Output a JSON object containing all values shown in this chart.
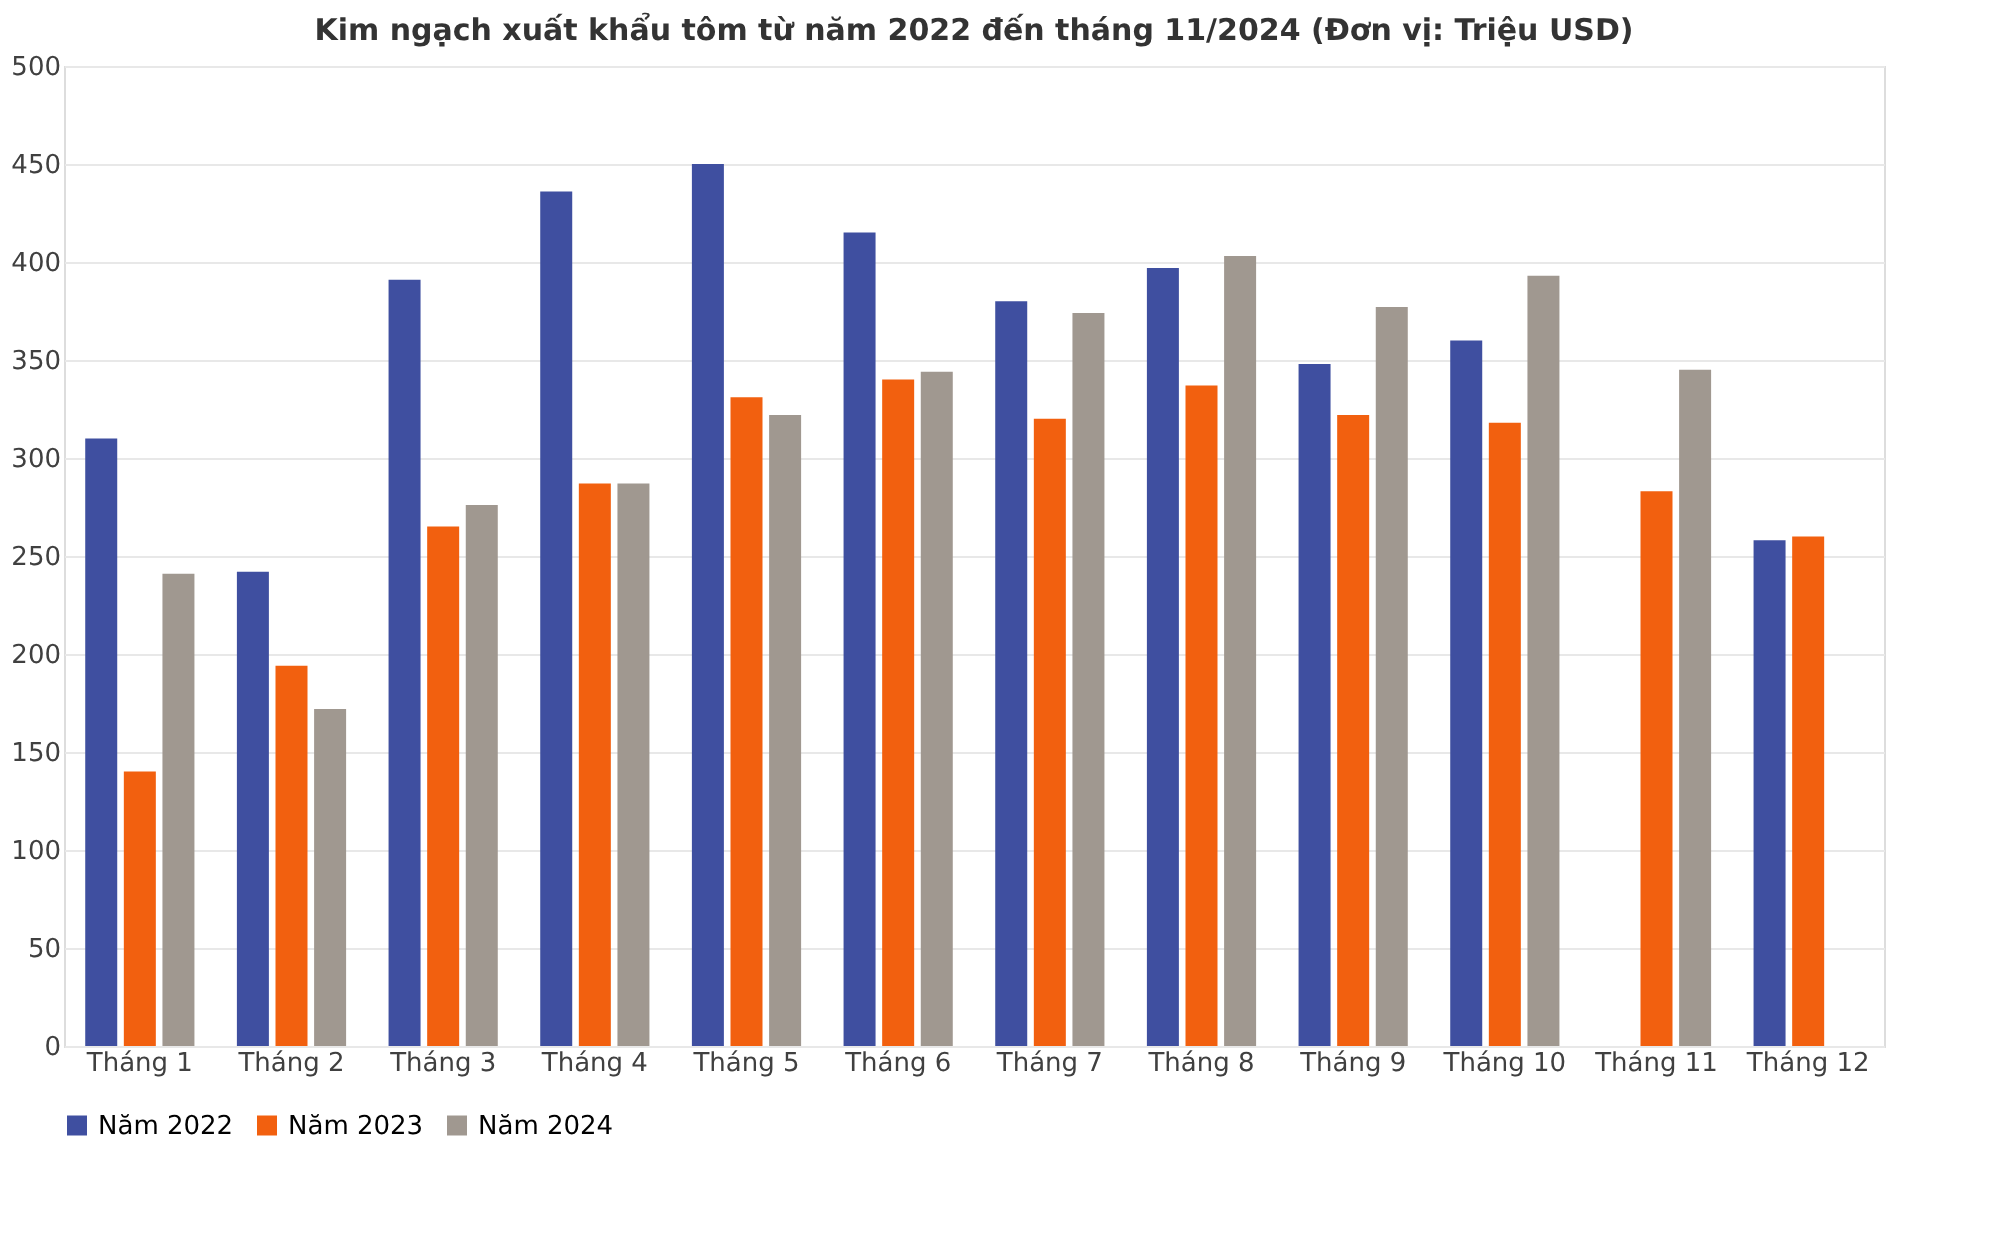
{
  "chart_data": {
    "type": "bar",
    "title": "Kim ngạch xuất khẩu tôm từ năm 2022 đến tháng 11/2024 (Đơn vị: Triệu USD)",
    "categories": [
      "Tháng 1",
      "Tháng 2",
      "Tháng 3",
      "Tháng 4",
      "Tháng 5",
      "Tháng 6",
      "Tháng 7",
      "Tháng 8",
      "Tháng 9",
      "Tháng 10",
      "Tháng 11",
      "Tháng 12"
    ],
    "series": [
      {
        "name": "Năm 2022",
        "color": "#3f4fa0",
        "values": [
          310,
          242,
          391,
          436,
          450,
          415,
          380,
          397,
          348,
          360,
          null,
          258
        ]
      },
      {
        "name": "Năm 2023",
        "color": "#f2600f",
        "values": [
          140,
          194,
          265,
          287,
          331,
          340,
          320,
          337,
          322,
          318,
          283,
          260
        ]
      },
      {
        "name": "Năm 2024",
        "color": "#a09890",
        "values": [
          241,
          172,
          276,
          287,
          322,
          344,
          374,
          403,
          377,
          393,
          345,
          null
        ]
      }
    ],
    "ylim": [
      0,
      500
    ],
    "yticks": [
      0,
      50,
      100,
      150,
      200,
      250,
      300,
      350,
      400,
      450,
      500
    ],
    "grid": "y",
    "legend": "bottom"
  }
}
